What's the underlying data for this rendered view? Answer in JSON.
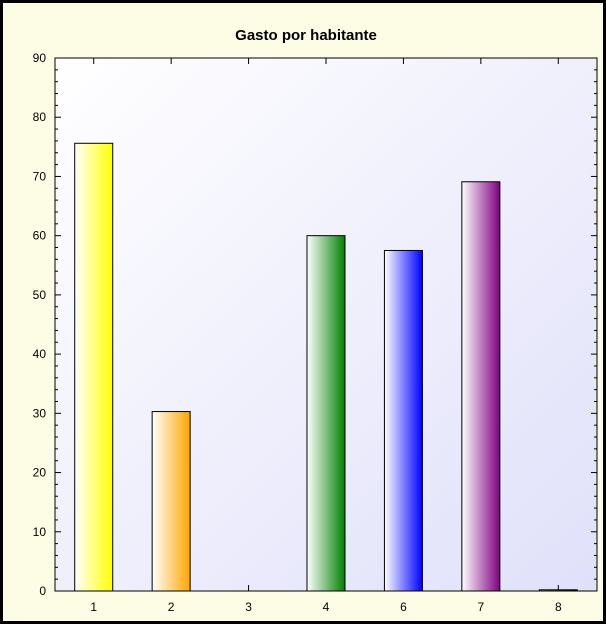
{
  "chart_data": {
    "type": "bar",
    "title": "Gasto por habitante",
    "xlabel": "",
    "ylabel": "",
    "categories": [
      "1",
      "2",
      "3",
      "4",
      "6",
      "7",
      "8"
    ],
    "values": [
      75.6,
      30.3,
      0,
      60.0,
      57.5,
      69.1,
      0.2
    ],
    "bar_colors": [
      "#ffff00",
      "#ffa500",
      "#ffffff",
      "#008000",
      "#0000ff",
      "#800080",
      "#000000"
    ],
    "ylim": [
      0,
      90
    ],
    "yticks": [
      0,
      10,
      20,
      30,
      40,
      50,
      60,
      70,
      80,
      90
    ],
    "grid": false,
    "legend": "none"
  },
  "colors": {
    "frame_background": "#fdfde6",
    "plot_background_start": "#ffffff",
    "plot_background_end": "#e0e0fa"
  }
}
